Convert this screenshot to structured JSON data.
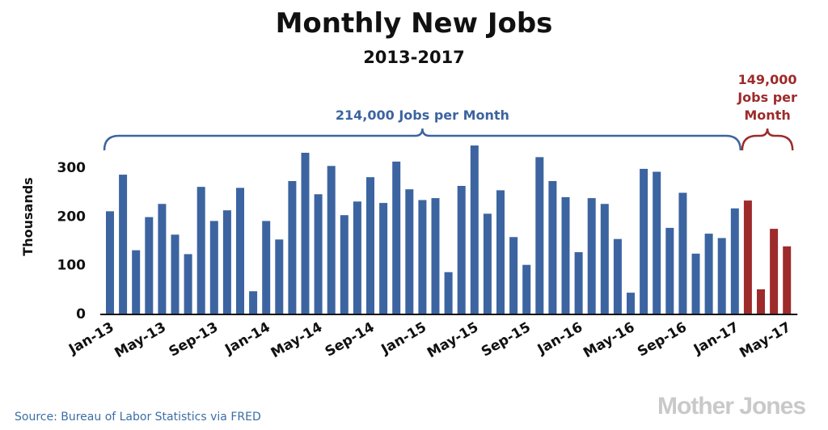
{
  "colors": {
    "blue": "#3c64a0",
    "red": "#9e2b2b",
    "axis": "#111111"
  },
  "chart_data": {
    "type": "bar",
    "title": "Monthly New Jobs",
    "subtitle": "2013-2017",
    "ylabel": "Thousands",
    "xlabel": "",
    "ylim": [
      0,
      360
    ],
    "yticks": [
      0,
      100,
      200,
      300
    ],
    "grid": false,
    "x_tick_labels": [
      "Jan-13",
      "May-13",
      "Sep-13",
      "Jan-14",
      "May-14",
      "Sep-14",
      "Jan-15",
      "May-15",
      "Sep-15",
      "Jan-16",
      "May-16",
      "Sep-16",
      "Jan-17",
      "May-17"
    ],
    "categories": [
      "Jan-13",
      "Feb-13",
      "Mar-13",
      "Apr-13",
      "May-13",
      "Jun-13",
      "Jul-13",
      "Aug-13",
      "Sep-13",
      "Oct-13",
      "Nov-13",
      "Dec-13",
      "Jan-14",
      "Feb-14",
      "Mar-14",
      "Apr-14",
      "May-14",
      "Jun-14",
      "Jul-14",
      "Aug-14",
      "Sep-14",
      "Oct-14",
      "Nov-14",
      "Dec-14",
      "Jan-15",
      "Feb-15",
      "Mar-15",
      "Apr-15",
      "May-15",
      "Jun-15",
      "Jul-15",
      "Aug-15",
      "Sep-15",
      "Oct-15",
      "Nov-15",
      "Dec-15",
      "Jan-16",
      "Feb-16",
      "Mar-16",
      "Apr-16",
      "May-16",
      "Jun-16",
      "Jul-16",
      "Aug-16",
      "Sep-16",
      "Oct-16",
      "Nov-16",
      "Dec-16",
      "Jan-17",
      "Feb-17",
      "Mar-17",
      "Apr-17",
      "May-17"
    ],
    "series": [
      {
        "color": "#3c64a0",
        "values": [
          210,
          285,
          130,
          198,
          225,
          162,
          122,
          260,
          190,
          212,
          258,
          46,
          190,
          152,
          272,
          330,
          245,
          303,
          202,
          230,
          280,
          227,
          312,
          255,
          233,
          237,
          85,
          262,
          345,
          205,
          253,
          157,
          100,
          321,
          272,
          239,
          126,
          237,
          225,
          153,
          43,
          297,
          291,
          176,
          248,
          123,
          164,
          155,
          216,
          null,
          null,
          null,
          null
        ]
      },
      {
        "color": "#9e2b2b",
        "values": [
          null,
          null,
          null,
          null,
          null,
          null,
          null,
          null,
          null,
          null,
          null,
          null,
          null,
          null,
          null,
          null,
          null,
          null,
          null,
          null,
          null,
          null,
          null,
          null,
          null,
          null,
          null,
          null,
          null,
          null,
          null,
          null,
          null,
          null,
          null,
          null,
          null,
          null,
          null,
          null,
          null,
          null,
          null,
          null,
          null,
          null,
          null,
          null,
          null,
          232,
          50,
          174,
          138
        ]
      }
    ],
    "annotations": [
      {
        "text": "214,000 Jobs per Month",
        "span": [
          "Jan-13",
          "Jan-17"
        ],
        "color": "#3c64a0"
      },
      {
        "text": "149,000\nJobs per\nMonth",
        "span": [
          "Feb-17",
          "May-17"
        ],
        "color": "#9e2b2b"
      }
    ],
    "source": "Source: Bureau of Labor Statistics via FRED",
    "brand": "Mother Jones"
  }
}
